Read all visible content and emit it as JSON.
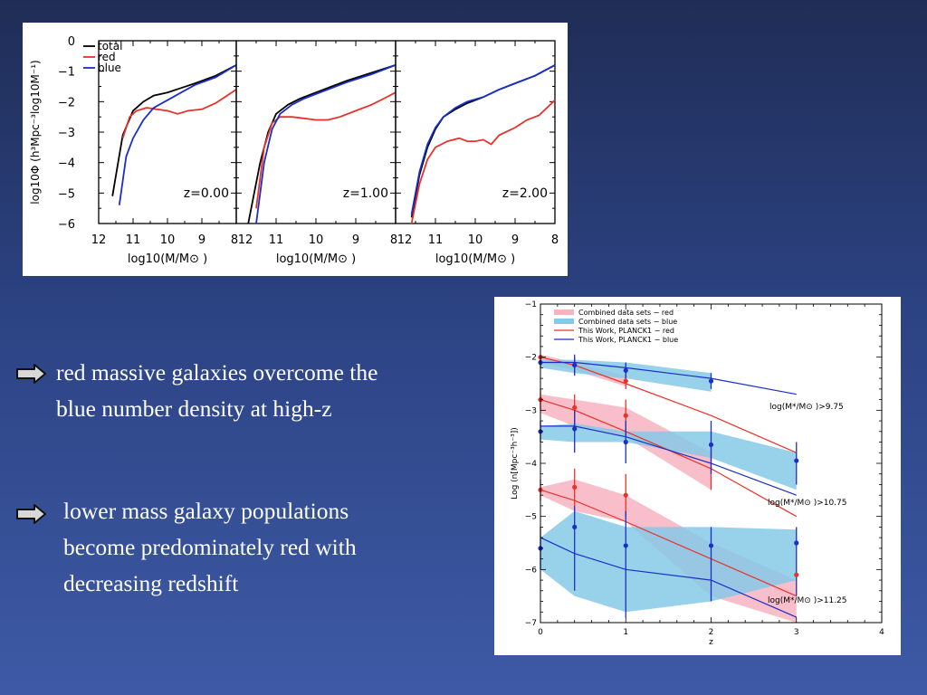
{
  "bullets": [
    {
      "lines": [
        "red massive galaxies overcome the",
        "blue number density at high-z"
      ],
      "icon": "arrow-right-icon"
    },
    {
      "lines": [
        "lower mass galaxy populations",
        "become predominately red with",
        "decreasing redshift"
      ],
      "icon": "arrow-right-icon"
    }
  ],
  "colors": {
    "total": "#000000",
    "red": "#e8322a",
    "blue": "#1a2fc7",
    "fill_red": "#f7b3bf",
    "fill_blue": "#86c9e6"
  },
  "chart_data": [
    {
      "type": "line",
      "panels": [
        "z=0.00",
        "z=1.00",
        "z=2.00"
      ],
      "legend": [
        "total",
        "red",
        "blue"
      ],
      "legend_position": "top-left",
      "xlabel": "log10(M/M⊙ )",
      "ylabel": "log10Φ (h³Mpc⁻³log10M⁻¹)",
      "xlim": [
        12,
        8
      ],
      "ylim": [
        -6,
        0
      ],
      "xticks": [
        "12",
        "11",
        "10",
        "9",
        "8"
      ],
      "yticks": [
        "0",
        "−1",
        "−2",
        "−3",
        "−4",
        "−5",
        "−6"
      ],
      "series": [
        {
          "panel": "z=0.00",
          "total": [
            [
              11.6,
              -5.1
            ],
            [
              11.3,
              -3.1
            ],
            [
              11.0,
              -2.3
            ],
            [
              10.7,
              -2.0
            ],
            [
              10.4,
              -1.8
            ],
            [
              10.0,
              -1.7
            ],
            [
              9.6,
              -1.55
            ],
            [
              9.2,
              -1.4
            ],
            [
              8.6,
              -1.15
            ],
            [
              8.0,
              -0.8
            ]
          ],
          "red": [
            [
              11.3,
              -3.2
            ],
            [
              11.1,
              -2.5
            ],
            [
              10.9,
              -2.3
            ],
            [
              10.6,
              -2.2
            ],
            [
              10.3,
              -2.25
            ],
            [
              10.0,
              -2.3
            ],
            [
              9.7,
              -2.4
            ],
            [
              9.4,
              -2.3
            ],
            [
              9.0,
              -2.25
            ],
            [
              8.6,
              -2.05
            ],
            [
              8.0,
              -1.6
            ]
          ],
          "blue": [
            [
              11.4,
              -5.4
            ],
            [
              11.2,
              -3.8
            ],
            [
              11.0,
              -3.2
            ],
            [
              10.7,
              -2.6
            ],
            [
              10.4,
              -2.2
            ],
            [
              10.0,
              -1.95
            ],
            [
              9.6,
              -1.7
            ],
            [
              9.2,
              -1.45
            ],
            [
              8.6,
              -1.2
            ],
            [
              8.0,
              -0.8
            ]
          ]
        },
        {
          "panel": "z=1.00",
          "total": [
            [
              11.7,
              -6.0
            ],
            [
              11.4,
              -4.0
            ],
            [
              11.2,
              -3.0
            ],
            [
              11.0,
              -2.4
            ],
            [
              10.7,
              -2.1
            ],
            [
              10.4,
              -1.9
            ],
            [
              10.0,
              -1.7
            ],
            [
              9.6,
              -1.5
            ],
            [
              9.2,
              -1.3
            ],
            [
              8.6,
              -1.05
            ],
            [
              8.0,
              -0.8
            ]
          ],
          "red": [
            [
              11.5,
              -5.5
            ],
            [
              11.3,
              -3.5
            ],
            [
              11.1,
              -2.7
            ],
            [
              10.9,
              -2.5
            ],
            [
              10.6,
              -2.5
            ],
            [
              10.3,
              -2.55
            ],
            [
              10.0,
              -2.6
            ],
            [
              9.7,
              -2.6
            ],
            [
              9.4,
              -2.5
            ],
            [
              9.0,
              -2.3
            ],
            [
              8.6,
              -2.1
            ],
            [
              8.3,
              -1.9
            ],
            [
              8.0,
              -1.7
            ]
          ],
          "blue": [
            [
              11.5,
              -6.0
            ],
            [
              11.3,
              -4.0
            ],
            [
              11.1,
              -2.9
            ],
            [
              10.9,
              -2.4
            ],
            [
              10.6,
              -2.1
            ],
            [
              10.3,
              -1.9
            ],
            [
              10.0,
              -1.75
            ],
            [
              9.6,
              -1.55
            ],
            [
              9.2,
              -1.35
            ],
            [
              8.6,
              -1.1
            ],
            [
              8.0,
              -0.8
            ]
          ]
        },
        {
          "panel": "z=2.00",
          "total": [
            [
              11.6,
              -5.8
            ],
            [
              11.4,
              -4.4
            ],
            [
              11.2,
              -3.5
            ],
            [
              11.0,
              -2.9
            ],
            [
              10.8,
              -2.5
            ],
            [
              10.5,
              -2.25
            ],
            [
              10.2,
              -2.05
            ],
            [
              9.8,
              -1.85
            ],
            [
              9.4,
              -1.6
            ],
            [
              9.0,
              -1.4
            ],
            [
              8.5,
              -1.15
            ],
            [
              8.0,
              -0.8
            ]
          ],
          "red": [
            [
              11.6,
              -6.0
            ],
            [
              11.4,
              -4.7
            ],
            [
              11.2,
              -3.9
            ],
            [
              11.0,
              -3.5
            ],
            [
              10.7,
              -3.3
            ],
            [
              10.4,
              -3.2
            ],
            [
              10.2,
              -3.3
            ],
            [
              10.0,
              -3.3
            ],
            [
              9.8,
              -3.25
            ],
            [
              9.6,
              -3.4
            ],
            [
              9.4,
              -3.1
            ],
            [
              9.0,
              -2.85
            ],
            [
              8.7,
              -2.6
            ],
            [
              8.4,
              -2.45
            ],
            [
              8.0,
              -1.95
            ]
          ],
          "blue": [
            [
              11.6,
              -5.7
            ],
            [
              11.4,
              -4.3
            ],
            [
              11.2,
              -3.4
            ],
            [
              11.0,
              -2.85
            ],
            [
              10.8,
              -2.5
            ],
            [
              10.5,
              -2.2
            ],
            [
              10.2,
              -2.0
            ],
            [
              9.8,
              -1.85
            ],
            [
              9.4,
              -1.6
            ],
            [
              9.0,
              -1.4
            ],
            [
              8.5,
              -1.15
            ],
            [
              8.0,
              -0.8
            ]
          ]
        }
      ]
    },
    {
      "type": "line",
      "xlabel": "z",
      "ylabel": "Log (n[Mpc⁻³h⁻³])",
      "xlim": [
        0,
        4
      ],
      "ylim": [
        -7,
        -1
      ],
      "xticks": [
        "0",
        "1",
        "2",
        "3",
        "4"
      ],
      "yticks": [
        "−1",
        "−2",
        "−3",
        "−4",
        "−5",
        "−6",
        "−7"
      ],
      "legend_position": "top-left",
      "legend": [
        "Combined data sets − red",
        "Combined data sets − blue",
        "This Work, PLANCK1 − red",
        "This Work, PLANCK1 − blue"
      ],
      "annotations": [
        "log(M*/M⊙ )>9.75",
        "log(M*/M⊙ )>10.75",
        "log(M*/M⊙ )>11.25"
      ],
      "bins": [
        {
          "label": "log(M*/M⊙ )>9.75",
          "model_red": [
            [
              0,
              -2.0
            ],
            [
              0.4,
              -2.15
            ],
            [
              1,
              -2.5
            ],
            [
              2,
              -3.1
            ],
            [
              3,
              -3.8
            ]
          ],
          "model_blue": [
            [
              0,
              -2.1
            ],
            [
              0.4,
              -2.1
            ],
            [
              1,
              -2.2
            ],
            [
              2,
              -2.4
            ],
            [
              3,
              -2.7
            ]
          ],
          "band_red": [
            [
              0,
              -1.95,
              -2.1
            ],
            [
              0.4,
              -2.1,
              -2.25
            ],
            [
              1,
              -2.35,
              -2.55
            ]
          ],
          "band_blue": [
            [
              0,
              -2.05,
              -2.2
            ],
            [
              0.4,
              -2.05,
              -2.3
            ],
            [
              1,
              -2.1,
              -2.4
            ],
            [
              2,
              -2.3,
              -2.65
            ]
          ],
          "points_red": [
            [
              0,
              -2.0
            ],
            [
              0.4,
              -2.15
            ],
            [
              1,
              -2.45
            ]
          ],
          "points_blue": [
            [
              0,
              -2.1
            ],
            [
              0.4,
              -2.15
            ],
            [
              1,
              -2.25
            ],
            [
              2,
              -2.45
            ]
          ],
          "err_red": [
            [
              0,
              -2.05,
              -1.95
            ],
            [
              0.4,
              -2.3,
              -2.0
            ],
            [
              1,
              -2.6,
              -2.3
            ]
          ],
          "err_blue": [
            [
              0,
              -2.2,
              -2.0
            ],
            [
              0.4,
              -2.35,
              -1.95
            ],
            [
              1,
              -2.45,
              -2.1
            ],
            [
              2,
              -2.6,
              -2.3
            ]
          ]
        },
        {
          "label": "log(M*/M⊙ )>10.75",
          "model_red": [
            [
              0,
              -2.8
            ],
            [
              0.4,
              -3.0
            ],
            [
              1,
              -3.4
            ],
            [
              2,
              -4.1
            ],
            [
              3,
              -5.0
            ]
          ],
          "model_blue": [
            [
              0,
              -3.3
            ],
            [
              0.4,
              -3.3
            ],
            [
              1,
              -3.5
            ],
            [
              2,
              -4.0
            ],
            [
              3,
              -4.6
            ]
          ],
          "band_red": [
            [
              0,
              -2.7,
              -3.05
            ],
            [
              0.4,
              -2.8,
              -3.3
            ],
            [
              1,
              -2.95,
              -3.5
            ],
            [
              2,
              -3.8,
              -4.5
            ]
          ],
          "band_blue": [
            [
              0,
              -3.3,
              -3.55
            ],
            [
              0.4,
              -3.25,
              -3.6
            ],
            [
              1,
              -3.4,
              -3.6
            ],
            [
              2,
              -3.4,
              -3.9
            ],
            [
              3,
              -3.8,
              -4.5
            ]
          ],
          "points_red": [
            [
              0,
              -2.8
            ],
            [
              0.4,
              -2.95
            ],
            [
              1,
              -3.1
            ]
          ],
          "points_blue": [
            [
              0,
              -3.4
            ],
            [
              0.4,
              -3.35
            ],
            [
              1,
              -3.6
            ],
            [
              2,
              -3.65
            ],
            [
              3,
              -3.95
            ]
          ],
          "err_red": [
            [
              0,
              -3.0,
              -2.6
            ],
            [
              0.4,
              -3.3,
              -2.7
            ],
            [
              1,
              -3.5,
              -2.8
            ],
            [
              2,
              -4.5,
              -3.7
            ]
          ],
          "err_blue": [
            [
              0,
              -3.6,
              -3.2
            ],
            [
              0.4,
              -3.8,
              -3.0
            ],
            [
              1,
              -4.0,
              -3.2
            ],
            [
              2,
              -4.2,
              -3.2
            ],
            [
              3,
              -4.4,
              -3.6
            ]
          ]
        },
        {
          "label": "log(M*/M⊙ )>11.25",
          "model_red": [
            [
              0,
              -4.5
            ],
            [
              0.4,
              -4.7
            ],
            [
              1,
              -5.1
            ],
            [
              2,
              -5.8
            ],
            [
              3,
              -6.5
            ]
          ],
          "model_blue": [
            [
              0,
              -5.4
            ],
            [
              0.4,
              -5.7
            ],
            [
              1,
              -6.0
            ],
            [
              2,
              -6.2
            ],
            [
              3,
              -6.9
            ]
          ],
          "band_red": [
            [
              0,
              -4.45,
              -4.6
            ],
            [
              0.4,
              -4.3,
              -4.9
            ],
            [
              1,
              -4.6,
              -5.1
            ],
            [
              2,
              -5.5,
              -6.5
            ],
            [
              3,
              -6.2,
              -7.0
            ]
          ],
          "band_blue": [
            [
              0,
              -5.4,
              -6.0
            ],
            [
              0.4,
              -4.9,
              -6.5
            ],
            [
              1,
              -5.2,
              -6.8
            ],
            [
              2,
              -5.2,
              -6.6
            ],
            [
              3,
              -5.25,
              -6.2
            ]
          ],
          "points_red": [
            [
              0,
              -4.5
            ],
            [
              0.4,
              -4.45
            ],
            [
              1,
              -4.6
            ],
            [
              3,
              -6.1
            ]
          ],
          "points_blue": [
            [
              0,
              -5.6
            ],
            [
              0.4,
              -5.2
            ],
            [
              1,
              -5.55
            ],
            [
              2,
              -5.55
            ],
            [
              3,
              -5.5
            ]
          ],
          "err_red": [
            [
              0,
              -4.7,
              -4.3
            ],
            [
              0.4,
              -4.8,
              -4.1
            ],
            [
              1,
              -5.0,
              -4.2
            ]
          ],
          "err_blue": [
            [
              0,
              -6.0,
              -5.2
            ],
            [
              0.4,
              -6.4,
              -4.8
            ],
            [
              1,
              -6.9,
              -4.9
            ],
            [
              2,
              -6.6,
              -5.2
            ],
            [
              3,
              -6.5,
              -5.2
            ]
          ]
        }
      ]
    }
  ]
}
